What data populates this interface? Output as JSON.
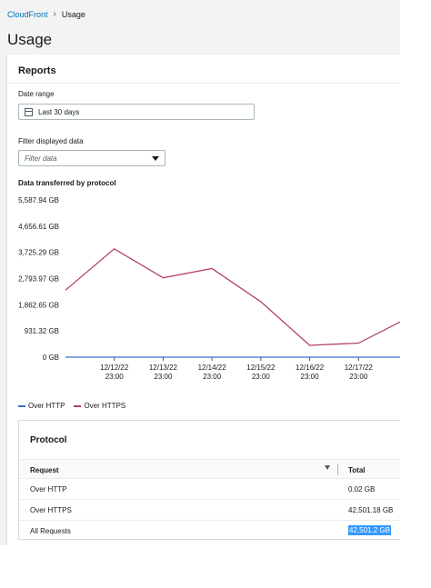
{
  "breadcrumb": {
    "parent": "CloudFront",
    "current": "Usage"
  },
  "page_title": "Usage",
  "reports": {
    "title": "Reports",
    "date_range_label": "Date range",
    "date_range_value": "Last 30 days",
    "filter_label": "Filter displayed data",
    "filter_placeholder": "Filter data",
    "chart_title": "Data transferred by protocol"
  },
  "chart_data": {
    "type": "line",
    "title": "Data transferred by protocol",
    "y_ticks": [
      "5,587.94 GB",
      "4,656.61 GB",
      "3,725.29 GB",
      "2,793.97 GB",
      "1,862.65 GB",
      "931.32 GB",
      "0 GB"
    ],
    "ylim": [
      0,
      5587.94
    ],
    "x_ticks": [
      {
        "date": "12/12/22",
        "time": "23:00"
      },
      {
        "date": "12/13/22",
        "time": "23:00"
      },
      {
        "date": "12/14/22",
        "time": "23:00"
      },
      {
        "date": "12/15/22",
        "time": "23:00"
      },
      {
        "date": "12/16/22",
        "time": "23:00"
      },
      {
        "date": "12/17/22",
        "time": "23:00"
      }
    ],
    "x": [
      "12/11/22",
      "12/12/22",
      "12/13/22",
      "12/14/22",
      "12/15/22",
      "12/16/22",
      "12/17/22",
      "12/18/22"
    ],
    "series": [
      {
        "name": "Over HTTP",
        "color": "#3f6ad9",
        "values": [
          0,
          0,
          0,
          0,
          0,
          0,
          0,
          0
        ]
      },
      {
        "name": "Over HTTPS",
        "color": "#b2435f",
        "values": [
          2380,
          3850,
          2820,
          3150,
          1970,
          420,
          500,
          1380
        ]
      }
    ],
    "legend": "bottom-left",
    "grid": true
  },
  "protocol_table": {
    "title": "Protocol",
    "columns": [
      "Request",
      "Total"
    ],
    "rows": [
      {
        "request": "Over HTTP",
        "total": "0.02 GB"
      },
      {
        "request": "Over HTTPS",
        "total": "42,501.18 GB"
      },
      {
        "request": "All Requests",
        "total": "42,501.2 GB"
      }
    ]
  }
}
